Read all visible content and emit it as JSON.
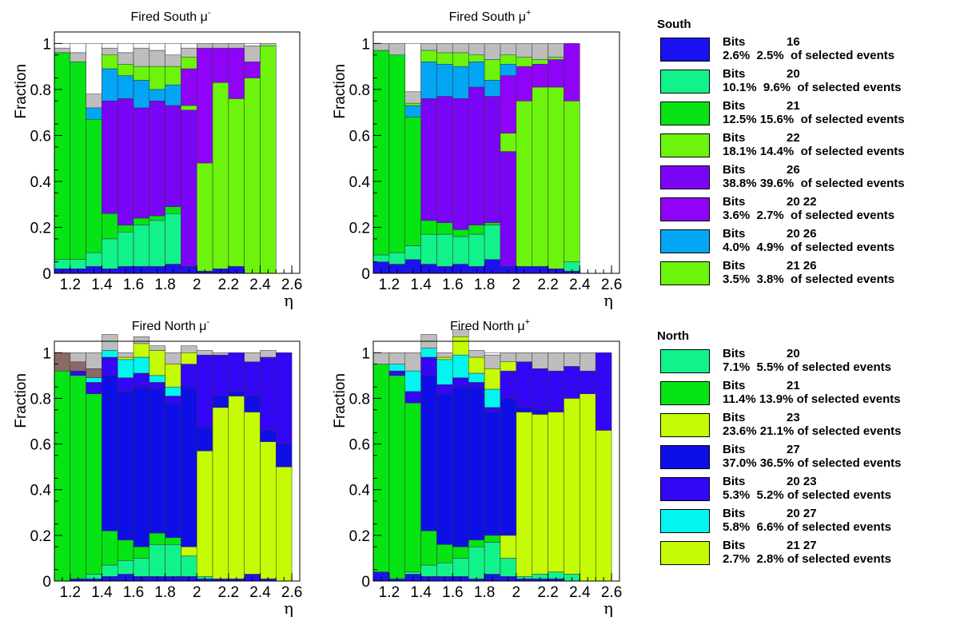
{
  "bin_colors": {
    "dkblue": "#1a12f0",
    "blue": "#1c14e6",
    "mint": "#12f28a",
    "green": "#06e414",
    "lime": "#6cf40c",
    "yellowgreen": "#c6fb06",
    "violet": "#7a05f6",
    "purple": "#8f04f8",
    "sky": "#02a6f5",
    "royal": "#0e0fe6",
    "indigo": "#3306f6",
    "cyan": "#00f6ee",
    "brown": "#8a6a66",
    "gray": "#bdbdbd",
    "white": "#ffffff"
  },
  "chart_data": [
    {
      "type": "stacked-bar",
      "title": "Fired South μ⁻",
      "title_base": "Fired South μ",
      "title_sup": "-",
      "xlabel": "η",
      "ylabel": "Fraction",
      "xlim": [
        1.1,
        2.65
      ],
      "ylim": [
        0,
        1.05
      ],
      "xticks": [
        "1.2",
        "1.4",
        "1.6",
        "1.8",
        "2",
        "2.2",
        "2.4",
        "2.6"
      ],
      "yticks": [
        "0",
        "0.2",
        "0.4",
        "0.6",
        "0.8",
        "1"
      ],
      "bin_edges": [
        1.1,
        1.2,
        1.3,
        1.4,
        1.5,
        1.6,
        1.7,
        1.8,
        1.9,
        2.0,
        2.1,
        2.2,
        2.3,
        2.4,
        2.5
      ],
      "series": [
        {
          "color": "dkblue",
          "values": [
            0.02,
            0.02,
            0.03,
            0.02,
            0.03,
            0.03,
            0.03,
            0.04,
            0.03,
            0.01,
            0.02,
            0.03,
            0,
            0
          ]
        },
        {
          "color": "mint",
          "values": [
            0.04,
            0.04,
            0.06,
            0.13,
            0.15,
            0.18,
            0.2,
            0.22,
            0,
            0,
            0,
            0,
            0,
            0
          ]
        },
        {
          "color": "green",
          "values": [
            0.9,
            0.86,
            0.58,
            0.11,
            0.03,
            0.03,
            0.02,
            0.03,
            0,
            0,
            0,
            0,
            0,
            0
          ]
        },
        {
          "color": "violet",
          "values": [
            0,
            0,
            0,
            0.49,
            0.55,
            0.48,
            0.5,
            0.44,
            0.68,
            0,
            0,
            0,
            0,
            0
          ]
        },
        {
          "color": "lime",
          "values": [
            0,
            0,
            0,
            0,
            0,
            0,
            0,
            0,
            0.02,
            0.47,
            0.81,
            0.73,
            0.85,
            0.99
          ]
        },
        {
          "color": "purple",
          "values": [
            0,
            0,
            0,
            0,
            0,
            0,
            0,
            0,
            0.16,
            0.5,
            0.15,
            0.22,
            0.07,
            0
          ]
        },
        {
          "color": "sky",
          "values": [
            0,
            0,
            0.05,
            0.14,
            0.1,
            0.12,
            0.05,
            0.09,
            0,
            0,
            0,
            0,
            0,
            0
          ]
        },
        {
          "color": "lime",
          "values": [
            0,
            0,
            0,
            0.06,
            0.05,
            0.06,
            0.1,
            0.08,
            0.05,
            0,
            0,
            0,
            0,
            0
          ]
        },
        {
          "color": "gray",
          "values": [
            0.02,
            0.04,
            0.06,
            0.03,
            0.05,
            0.08,
            0.07,
            0.05,
            0.04,
            0.02,
            0.02,
            0.02,
            0.07,
            0.01
          ]
        }
      ]
    },
    {
      "type": "stacked-bar",
      "title": "Fired South μ⁺",
      "title_base": "Fired South μ",
      "title_sup": "+",
      "xlabel": "η",
      "ylabel": "Fraction",
      "xlim": [
        1.1,
        2.65
      ],
      "ylim": [
        0,
        1.05
      ],
      "xticks": [
        "1.2",
        "1.4",
        "1.6",
        "1.8",
        "2",
        "2.2",
        "2.4",
        "2.6"
      ],
      "yticks": [
        "0",
        "0.2",
        "0.4",
        "0.6",
        "0.8",
        "1"
      ],
      "bin_edges": [
        1.1,
        1.2,
        1.3,
        1.4,
        1.5,
        1.6,
        1.7,
        1.8,
        1.9,
        2.0,
        2.1,
        2.2,
        2.3,
        2.4
      ],
      "series": [
        {
          "color": "dkblue",
          "values": [
            0.05,
            0.04,
            0.06,
            0.04,
            0.03,
            0.04,
            0.03,
            0.06,
            0.03,
            0.03,
            0.03,
            0.02,
            0.01
          ]
        },
        {
          "color": "mint",
          "values": [
            0.03,
            0.05,
            0.06,
            0.13,
            0.14,
            0.12,
            0.14,
            0.15,
            0,
            0,
            0,
            0,
            0.04
          ]
        },
        {
          "color": "green",
          "values": [
            0.89,
            0.86,
            0.56,
            0.06,
            0.05,
            0.03,
            0.04,
            0.01,
            0,
            0,
            0,
            0,
            0
          ]
        },
        {
          "color": "violet",
          "values": [
            0,
            0,
            0,
            0.53,
            0.55,
            0.57,
            0.6,
            0.55,
            0.5,
            0,
            0,
            0,
            0
          ]
        },
        {
          "color": "lime",
          "values": [
            0,
            0,
            0,
            0,
            0,
            0,
            0,
            0,
            0.08,
            0.72,
            0.78,
            0.79,
            0.7
          ]
        },
        {
          "color": "purple",
          "values": [
            0,
            0,
            0,
            0,
            0,
            0,
            0,
            0,
            0.25,
            0.15,
            0.1,
            0.12,
            0.25
          ]
        },
        {
          "color": "sky",
          "values": [
            0,
            0,
            0.05,
            0.16,
            0.14,
            0.14,
            0.11,
            0.07,
            0.05,
            0,
            0,
            0,
            0
          ]
        },
        {
          "color": "lime",
          "values": [
            0,
            0,
            0.01,
            0.05,
            0.05,
            0.06,
            0.03,
            0.09,
            0.04,
            0.04,
            0.02,
            0.01,
            0
          ]
        },
        {
          "color": "gray",
          "values": [
            0.03,
            0.05,
            0.05,
            0.03,
            0.04,
            0.04,
            0.05,
            0.07,
            0.05,
            0.06,
            0.07,
            0.06,
            0
          ]
        }
      ]
    },
    {
      "type": "stacked-bar",
      "title": "Fired North μ⁻",
      "title_base": "Fired North μ",
      "title_sup": "-",
      "xlabel": "η",
      "ylabel": "Fraction",
      "xlim": [
        1.1,
        2.65
      ],
      "ylim": [
        0,
        1.05
      ],
      "xticks": [
        "1.2",
        "1.4",
        "1.6",
        "1.8",
        "2",
        "2.2",
        "2.4",
        "2.6"
      ],
      "yticks": [
        "0",
        "0.2",
        "0.4",
        "0.6",
        "0.8",
        "1"
      ],
      "bin_edges": [
        1.1,
        1.2,
        1.3,
        1.4,
        1.5,
        1.6,
        1.7,
        1.8,
        1.9,
        2.0,
        2.1,
        2.2,
        2.3,
        2.4,
        2.5,
        2.6
      ],
      "series": [
        {
          "color": "blue",
          "values": [
            0,
            0.01,
            0.01,
            0.02,
            0.03,
            0.02,
            0.02,
            0.02,
            0.02,
            0.01,
            0.01,
            0.01,
            0.03,
            0.01,
            0
          ]
        },
        {
          "color": "mint",
          "values": [
            0,
            0,
            0.02,
            0.05,
            0.06,
            0.08,
            0.14,
            0.14,
            0.09,
            0.01,
            0,
            0,
            0,
            0,
            0
          ]
        },
        {
          "color": "green",
          "values": [
            0.92,
            0.89,
            0.79,
            0.15,
            0.09,
            0.05,
            0.05,
            0.03,
            0,
            0,
            0,
            0,
            0,
            0,
            0
          ]
        },
        {
          "color": "yellowgreen",
          "values": [
            0,
            0,
            0,
            0,
            0,
            0,
            0,
            0,
            0.04,
            0.55,
            0.75,
            0.8,
            0.71,
            0.6,
            0.5
          ]
        },
        {
          "color": "royal",
          "values": [
            0,
            0,
            0,
            0.68,
            0.65,
            0.7,
            0.63,
            0.59,
            0.7,
            0.1,
            0.05,
            0.02,
            0.07,
            0.05,
            0.1
          ]
        },
        {
          "color": "indigo",
          "values": [
            0,
            0.02,
            0.05,
            0.08,
            0.06,
            0.06,
            0.03,
            0.03,
            0.1,
            0.32,
            0.18,
            0.17,
            0.15,
            0.32,
            0.4
          ]
        },
        {
          "color": "cyan",
          "values": [
            0,
            0,
            0.02,
            0.03,
            0.08,
            0.07,
            0.03,
            0.04,
            0,
            0,
            0,
            0,
            0,
            0,
            0
          ]
        },
        {
          "color": "yellowgreen",
          "values": [
            0,
            0,
            0,
            0,
            0.01,
            0.06,
            0.11,
            0.1,
            0.05,
            0,
            0,
            0,
            0,
            0,
            0
          ]
        },
        {
          "color": "brown",
          "values": [
            0.08,
            0.04,
            0.04,
            0,
            0,
            0,
            0,
            0,
            0,
            0,
            0,
            0,
            0,
            0,
            0
          ]
        },
        {
          "color": "gray",
          "values": [
            0,
            0.04,
            0.07,
            0.07,
            0.02,
            0.03,
            0.02,
            0.05,
            0.03,
            0.02,
            0.01,
            0,
            0.04,
            0.03,
            0
          ]
        }
      ]
    },
    {
      "type": "stacked-bar",
      "title": "Fired North μ⁺",
      "title_base": "Fired North μ",
      "title_sup": "+",
      "xlabel": "η",
      "ylabel": "Fraction",
      "xlim": [
        1.1,
        2.65
      ],
      "ylim": [
        0,
        1.05
      ],
      "xticks": [
        "1.2",
        "1.4",
        "1.6",
        "1.8",
        "2",
        "2.2",
        "2.4",
        "2.6"
      ],
      "yticks": [
        "0",
        "0.2",
        "0.4",
        "0.6",
        "0.8",
        "1"
      ],
      "bin_edges": [
        1.1,
        1.2,
        1.3,
        1.4,
        1.5,
        1.6,
        1.7,
        1.8,
        1.9,
        2.0,
        2.1,
        2.2,
        2.3,
        2.4,
        2.5,
        2.6
      ],
      "series": [
        {
          "color": "blue",
          "values": [
            0.04,
            0.01,
            0.03,
            0.02,
            0.02,
            0.02,
            0.01,
            0.03,
            0.02,
            0.01,
            0.01,
            0.01,
            0,
            0,
            0
          ]
        },
        {
          "color": "mint",
          "values": [
            0,
            0,
            0.01,
            0.05,
            0.06,
            0.08,
            0.14,
            0.14,
            0.08,
            0.01,
            0.02,
            0.03,
            0.03,
            0,
            0
          ]
        },
        {
          "color": "green",
          "values": [
            0.91,
            0.89,
            0.74,
            0.15,
            0.08,
            0.05,
            0.03,
            0.03,
            0,
            0,
            0,
            0,
            0,
            0,
            0
          ]
        },
        {
          "color": "yellowgreen",
          "values": [
            0,
            0,
            0,
            0,
            0,
            0,
            0,
            0,
            0.1,
            0.72,
            0.7,
            0.7,
            0.77,
            0.82,
            0.66
          ]
        },
        {
          "color": "royal",
          "values": [
            0,
            0,
            0,
            0.68,
            0.66,
            0.7,
            0.67,
            0.54,
            0.6,
            0.02,
            0.02,
            0,
            0,
            0,
            0
          ]
        },
        {
          "color": "indigo",
          "values": [
            0,
            0.02,
            0.05,
            0.08,
            0.04,
            0.04,
            0.02,
            0.02,
            0.12,
            0.2,
            0.18,
            0.18,
            0.14,
            0.1,
            0.34
          ]
        },
        {
          "color": "cyan",
          "values": [
            0,
            0.03,
            0.09,
            0.04,
            0.11,
            0.1,
            0.04,
            0.08,
            0,
            0,
            0,
            0,
            0,
            0,
            0
          ]
        },
        {
          "color": "yellowgreen",
          "values": [
            0,
            0,
            0,
            0,
            0.01,
            0.08,
            0.07,
            0.09,
            0.04,
            0,
            0,
            0,
            0,
            0,
            0
          ]
        },
        {
          "color": "gray",
          "values": [
            0.05,
            0.05,
            0.08,
            0.06,
            0.02,
            0.03,
            0.03,
            0.06,
            0.04,
            0.04,
            0.07,
            0.08,
            0.06,
            0.08,
            0
          ]
        }
      ]
    }
  ],
  "legend_south": {
    "title": "South",
    "entries": [
      {
        "color": "dkblue",
        "bits_label": "Bits",
        "bits": "16",
        "line2": "2.6%  2.5%  of selected events"
      },
      {
        "color": "mint",
        "bits_label": "Bits",
        "bits": "20",
        "line2": "10.1%  9.6%  of selected events"
      },
      {
        "color": "green",
        "bits_label": "Bits",
        "bits": "21",
        "line2": "12.5% 15.6%  of selected events"
      },
      {
        "color": "lime",
        "bits_label": "Bits",
        "bits": "22",
        "line2": "18.1% 14.4%  of selected events"
      },
      {
        "color": "violet",
        "bits_label": "Bits",
        "bits": "26",
        "line2": "38.8% 39.6%  of selected events"
      },
      {
        "color": "purple",
        "bits_label": "Bits",
        "bits": "20 22",
        "line2": "3.6%  2.7%  of selected events"
      },
      {
        "color": "sky",
        "bits_label": "Bits",
        "bits": "20 26",
        "line2": "4.0%  4.9%  of selected events"
      },
      {
        "color": "lime",
        "bits_label": "Bits",
        "bits": "21 26",
        "line2": "3.5%  3.8%  of selected events"
      }
    ]
  },
  "legend_north": {
    "title": "North",
    "entries": [
      {
        "color": "mint",
        "bits_label": "Bits",
        "bits": "20",
        "line2": "7.1%  5.5% of selected events"
      },
      {
        "color": "green",
        "bits_label": "Bits",
        "bits": "21",
        "line2": "11.4% 13.9% of selected events"
      },
      {
        "color": "yellowgreen",
        "bits_label": "Bits",
        "bits": "23",
        "line2": "23.6% 21.1% of selected events"
      },
      {
        "color": "royal",
        "bits_label": "Bits",
        "bits": "27",
        "line2": "37.0% 36.5% of selected events"
      },
      {
        "color": "indigo",
        "bits_label": "Bits",
        "bits": "20 23",
        "line2": "5.3%  5.2% of selected events"
      },
      {
        "color": "cyan",
        "bits_label": "Bits",
        "bits": "20 27",
        "line2": "5.8%  6.6% of selected events"
      },
      {
        "color": "yellowgreen",
        "bits_label": "Bits",
        "bits": "21 27",
        "line2": "2.7%  2.8% of selected events"
      }
    ]
  }
}
